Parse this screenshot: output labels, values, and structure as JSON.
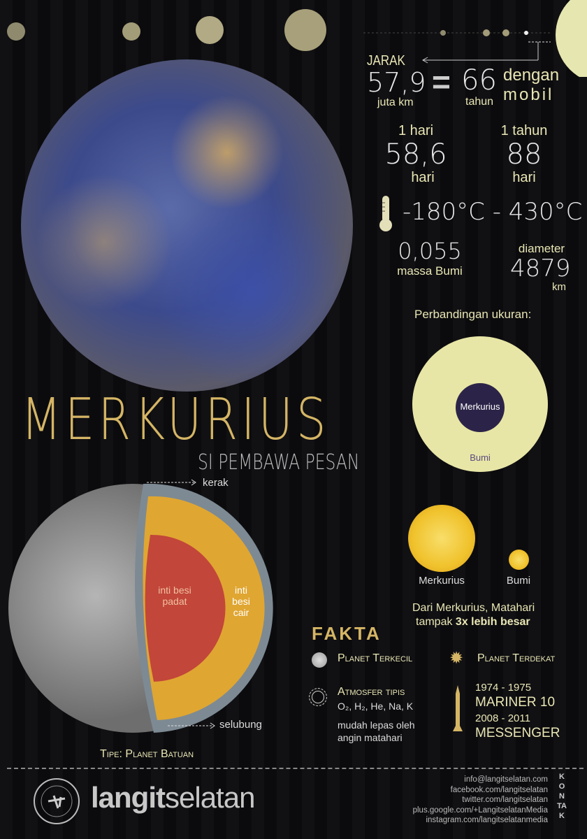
{
  "title": "MERKURIUS",
  "subtitle": "SI PEMBAWA PESAN",
  "distance": {
    "label": "JARAK",
    "value": "57,9",
    "unit": "juta km",
    "equals": "=",
    "car_value": "66",
    "car_unit": "tahun",
    "car_label_1": "dengan",
    "car_label_2": "mobil"
  },
  "day": {
    "label": "1 hari",
    "value": "58,6",
    "unit": "hari"
  },
  "year": {
    "label": "1 tahun",
    "value": "88",
    "unit": "hari"
  },
  "temperature": "-180°C - 430°C",
  "mass": {
    "value": "0,055",
    "unit": "massa Bumi"
  },
  "diameter": {
    "label": "diameter",
    "value": "4879",
    "unit": "km"
  },
  "size_comparison": {
    "title": "Perbandingan ukuran:",
    "inner": "Merkurius",
    "outer": "Bumi"
  },
  "sun_comparison": {
    "left": "Merkurius",
    "right": "Bumi",
    "caption_1": "Dari Merkurius, Matahari",
    "caption_2_prefix": "tampak ",
    "caption_2_bold": "3x lebih besar"
  },
  "structure": {
    "crust": "kerak",
    "mantle": "selubung",
    "inner_core": "inti besi padat",
    "outer_core": "inti besi cair",
    "type": "Tipe: Planet Batuan"
  },
  "facts": {
    "title": "FAKTA",
    "smallest": "Planet Terkecil",
    "closest": "Planet Terdekat",
    "atmosphere": "Atmosfer tipis",
    "atmosphere_gases": "O₂, H₂, He, Na, K",
    "atmosphere_note_1": "mudah lepas oleh",
    "atmosphere_note_2": "angin matahari",
    "mission1_years": "1974 - 1975",
    "mission1_name": "MARINER 10",
    "mission2_years": "2008 - 2011",
    "mission2_name": "MESSENGER"
  },
  "footer": {
    "brand_bold": "langit",
    "brand_light": "selatan",
    "logo_text": "LANGITSELATAN ASTRO 101",
    "contacts": [
      "info@langitselatan.com",
      "facebook.com/langitselatan",
      "twitter.com/langitselatan",
      "plus.google.com/+LangitselatanMedia",
      "instagram.com/langitselatanmedia"
    ],
    "contact_label": "KONTAK"
  },
  "colors": {
    "cream": "#e9e6b4",
    "gold": "#d5b565",
    "earth_disc": "#e8e6a6",
    "mercury_disc": "#2c2448",
    "sun": "#f2c230"
  }
}
